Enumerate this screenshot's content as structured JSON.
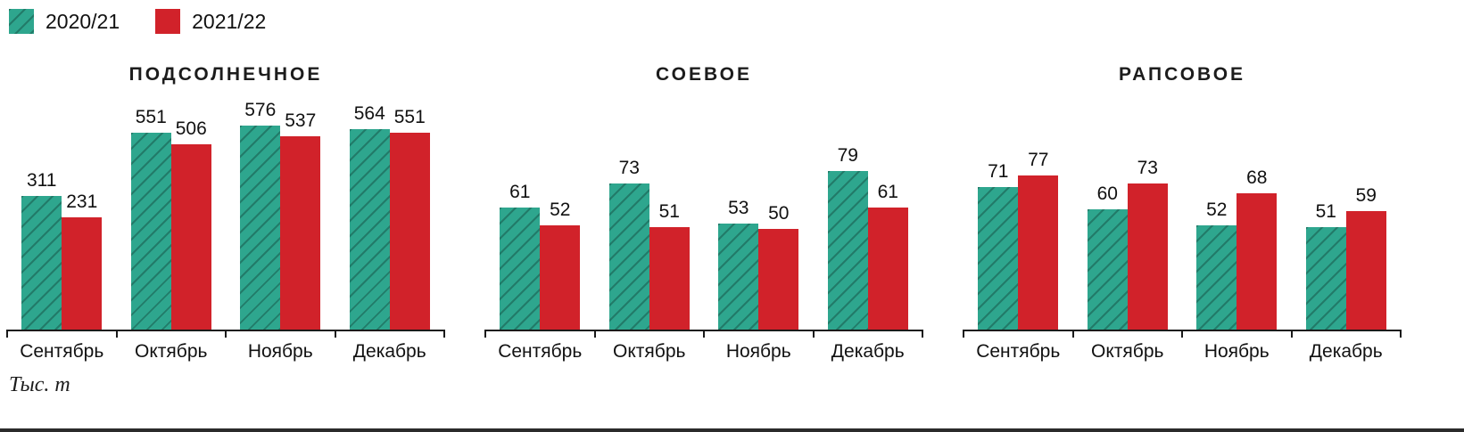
{
  "legend": {
    "items": [
      {
        "label": "2020/21",
        "color": "#2EA68E",
        "hatched": true
      },
      {
        "label": "2021/22",
        "color": "#D1222A",
        "hatched": false
      }
    ],
    "position": "top-left"
  },
  "footnote": "Тыс. т",
  "chart_data": [
    {
      "type": "bar",
      "title": "ПОДСОЛНЕЧНОЕ",
      "categories": [
        "Сентябрь",
        "Октябрь",
        "Ноябрь",
        "Декабрь"
      ],
      "series": [
        {
          "name": "2020/21",
          "values": [
            311,
            551,
            576,
            564
          ]
        },
        {
          "name": "2021/22",
          "values": [
            231,
            506,
            537,
            551
          ]
        }
      ],
      "ylabel": "Тыс. т",
      "ylim": [
        -190,
        580
      ],
      "grid": false,
      "data_labels": true
    },
    {
      "type": "bar",
      "title": "СОЕВОЕ",
      "categories": [
        "Сентябрь",
        "Октябрь",
        "Ноябрь",
        "Декабрь"
      ],
      "series": [
        {
          "name": "2020/21",
          "values": [
            61,
            73,
            53,
            79
          ]
        },
        {
          "name": "2021/22",
          "values": [
            52,
            51,
            50,
            61
          ]
        }
      ],
      "ylabel": "Тыс. т",
      "ylim": [
        0,
        80
      ],
      "grid": false,
      "data_labels": true
    },
    {
      "type": "bar",
      "title": "РАПСОВОЕ",
      "categories": [
        "Сентябрь",
        "Октябрь",
        "Ноябрь",
        "Декабрь"
      ],
      "series": [
        {
          "name": "2020/21",
          "values": [
            71,
            60,
            52,
            51
          ]
        },
        {
          "name": "2021/22",
          "values": [
            77,
            73,
            68,
            59
          ]
        }
      ],
      "ylabel": "Тыс. т",
      "ylim": [
        0,
        80
      ],
      "grid": false,
      "data_labels": true
    }
  ]
}
